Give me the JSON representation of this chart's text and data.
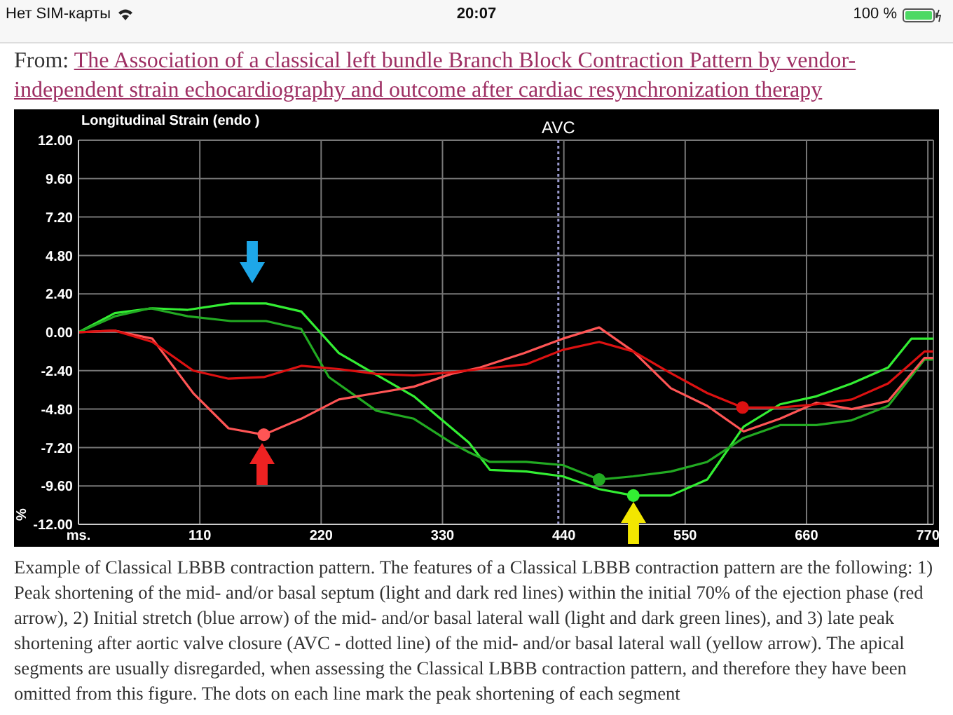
{
  "chart_data": {
    "type": "line",
    "title": "The Association of a classical left bundle Branch Block Contraction Pattern by vendor-independent strain echocardiography and outcome after cardiac resynchronization therapy",
    "subtitle": "Longitudinal Strain (endo )",
    "ylabel": "%",
    "annotations": [
      "Нет SIM-карты",
      "20:07",
      "100 %",
      "From:",
      "Example of Classical LBBB contraction pattern. The features of a Classical LBBB contraction pattern are the following: 1) Peak shortening of the mid- and/or basal septum (light and dark red lines) within the initial 70% of the ejection phase (red arrow), 2) Initial stretch (blue arrow) of the mid- and/or basal lateral wall (light and dark green lines), and 3) late peak shortening after aortic valve closure (AVC - dotted line) of the mid- and/or basal lateral wall (yellow arrow). The apical segments are usually disregarded, when assessing the Classical LBBB contraction pattern, and therefore they have been omitted from this figure. The dots on each line mark the peak shortening of each segment"
    ],
    "xlim": [
      0,
      775
    ],
    "xticks": [
      {
        "value": 0,
        "label": "ms."
      },
      110,
      220,
      330,
      440,
      550,
      660,
      770
    ],
    "ylim": [
      -12,
      12
    ],
    "yticks": [
      {
        "value": -12,
        "label": "-12.00"
      },
      {
        "value": -9.6,
        "label": "-9.60"
      },
      {
        "value": -7.2,
        "label": "-7.20"
      },
      {
        "value": -4.8,
        "label": "-4.80"
      },
      {
        "value": -2.4,
        "label": "-2.40"
      },
      {
        "value": 0,
        "label": "0.00"
      },
      {
        "value": 2.4,
        "label": "2.40"
      },
      {
        "value": 4.8,
        "label": "4.80"
      },
      {
        "value": 7.2,
        "label": "7.20"
      },
      {
        "value": 9.6,
        "label": "9.60"
      },
      {
        "value": 12,
        "label": "12.00"
      }
    ],
    "grid": true,
    "ref_lines": [
      {
        "axis": "x",
        "value": 435,
        "label": "AVC",
        "color": "#9999cc",
        "line_style": "dotted"
      }
    ],
    "series": [
      {
        "color": "#33ee33",
        "x": [
          0,
          33,
          67,
          99,
          138,
          170,
          202,
          236,
          304,
          354,
          373,
          406,
          439,
          472,
          503,
          537,
          570,
          603,
          636,
          669,
          701,
          734,
          755,
          775
        ],
        "values": [
          0,
          1.2,
          1.5,
          1.4,
          1.8,
          1.8,
          1.3,
          -1.3,
          -4,
          -6.9,
          -8.6,
          -8.7,
          -9,
          -9.8,
          -10.2,
          -10.2,
          -9.2,
          -5.9,
          -4.5,
          -4,
          -3.2,
          -2.2,
          -0.4,
          -0.4
        ]
      },
      {
        "color": "#22aa22",
        "x": [
          0,
          33,
          65,
          99,
          138,
          170,
          202,
          227,
          270,
          304,
          338,
          354,
          373,
          406,
          439,
          472,
          503,
          537,
          570,
          603,
          636,
          669,
          701,
          734,
          767,
          775
        ],
        "values": [
          0,
          1,
          1.5,
          1,
          0.7,
          0.7,
          0.2,
          -2.8,
          -4.9,
          -5.4,
          -6.9,
          -7.5,
          -8.1,
          -8.1,
          -8.3,
          -9.2,
          -9,
          -8.7,
          -8.1,
          -6.6,
          -5.8,
          -5.8,
          -5.5,
          -4.6,
          -1.7,
          -1.7
        ]
      },
      {
        "color": "#ff5555",
        "x": [
          0,
          33,
          67,
          104,
          136,
          168,
          202,
          236,
          270,
          304,
          338,
          364,
          404,
          439,
          472,
          503,
          537,
          570,
          603,
          636,
          669,
          701,
          734,
          767,
          775
        ],
        "values": [
          0,
          0.1,
          -0.4,
          -3.8,
          -6,
          -6.4,
          -5.4,
          -4.2,
          -3.8,
          -3.4,
          -2.6,
          -2.2,
          -1.3,
          -0.4,
          0.3,
          -1.2,
          -3.5,
          -4.6,
          -6.2,
          -5.4,
          -4.4,
          -4.8,
          -4.3,
          -1.6,
          -1.6
        ]
      },
      {
        "color": "#dd1111",
        "x": [
          0,
          33,
          67,
          104,
          136,
          168,
          202,
          236,
          270,
          304,
          338,
          364,
          406,
          439,
          472,
          503,
          533,
          570,
          602,
          636,
          669,
          701,
          734,
          767,
          775
        ],
        "values": [
          0,
          0.1,
          -0.6,
          -2.4,
          -2.9,
          -2.8,
          -2.1,
          -2.3,
          -2.6,
          -2.7,
          -2.5,
          -2.3,
          -2,
          -1.1,
          -0.6,
          -1.2,
          -2.4,
          -3.8,
          -4.7,
          -4.7,
          -4.5,
          -4.2,
          -3.2,
          -1.2,
          -1.2
        ]
      },
      {
        "type": "scatter",
        "x": [
          168,
          503,
          472,
          602
        ],
        "values": [
          -6.4,
          -10.2,
          -9.2,
          -4.7
        ],
        "colors": [
          "#ff5555",
          "#33ee33",
          "#22aa22",
          "#dd1111"
        ]
      }
    ]
  }
}
